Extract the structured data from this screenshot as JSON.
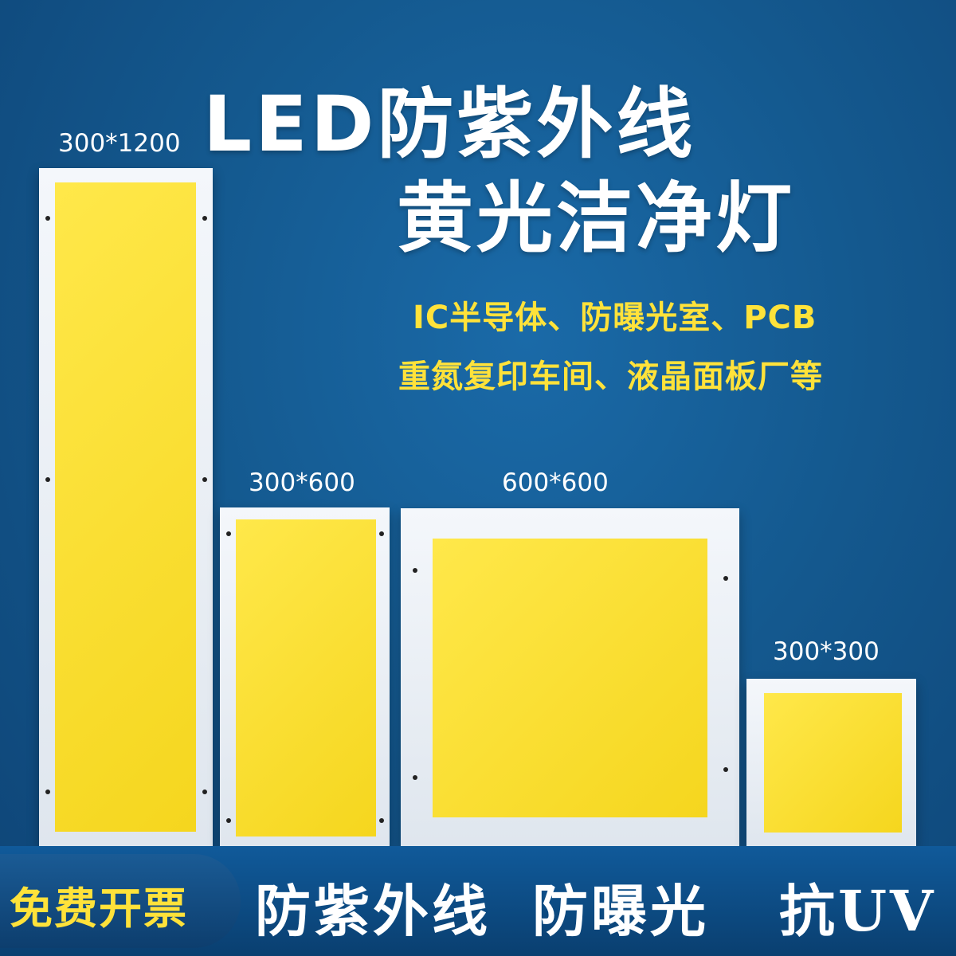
{
  "headline": {
    "line1": "LED防紫外线",
    "line2": "黄光洁净灯"
  },
  "applications": {
    "line1": "IC半导体、防曝光室、PCB",
    "line2": "重氮复印车间、液晶面板厂等"
  },
  "panels": [
    {
      "size": "300*1200"
    },
    {
      "size": "300*600"
    },
    {
      "size": "600*600"
    },
    {
      "size": "300*300"
    }
  ],
  "footer": {
    "badge": "免费开票",
    "features": [
      "防紫外线",
      "防曝光",
      "抗UV"
    ]
  },
  "colors": {
    "background": "#14598f",
    "accent_yellow": "#ffe23a",
    "panel_yellow": "#f8dd2a",
    "panel_frame": "#eef2f7"
  }
}
